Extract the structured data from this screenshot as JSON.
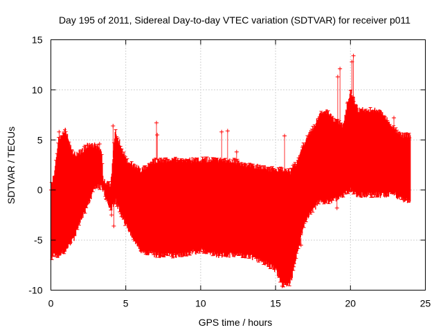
{
  "chart_data": {
    "type": "scatter",
    "title": "Day 195 of 2011, Sidereal Day-to-day VTEC variation (SDTVAR) for receiver p011",
    "xlabel": "GPS time / hours",
    "ylabel": "SDTVAR / TECUs",
    "xlim": [
      0,
      25
    ],
    "ylim": [
      -10,
      15
    ],
    "xticks": [
      0,
      5,
      10,
      15,
      20,
      25
    ],
    "yticks": [
      -10,
      -5,
      0,
      5,
      10,
      15
    ],
    "xtick_labels": [
      "0",
      "5",
      "10",
      "15",
      "20",
      "25"
    ],
    "ytick_labels": [
      "-10",
      "-5",
      "0",
      "5",
      "10",
      "15"
    ],
    "grid": true,
    "legend": "none",
    "marker": "+",
    "colors": {
      "series": "#ff0000",
      "grid": "#a0a0a0",
      "axis": "#000000"
    },
    "series": [
      {
        "name": "SDTVAR",
        "envelope": {
          "x": [
            0.0,
            0.2,
            0.5,
            1.0,
            1.5,
            2.0,
            2.5,
            3.0,
            3.4,
            3.5,
            4.0,
            4.3,
            5.0,
            6.0,
            7.0,
            8.0,
            9.0,
            10.0,
            11.0,
            12.0,
            13.0,
            14.0,
            15.0,
            15.5,
            16.0,
            16.5,
            17.0,
            18.0,
            18.3,
            18.9,
            19.5,
            20.0,
            20.5,
            21.0,
            22.0,
            23.0,
            23.5,
            24.0
          ],
          "upper": [
            0.3,
            1.5,
            5.0,
            6.0,
            3.5,
            3.8,
            4.5,
            4.5,
            3.8,
            1.0,
            0.5,
            6.0,
            3.0,
            2.0,
            3.0,
            3.0,
            3.0,
            3.0,
            3.0,
            3.0,
            2.5,
            2.3,
            2.0,
            2.0,
            1.8,
            3.0,
            5.0,
            7.5,
            8.0,
            7.0,
            6.5,
            10.0,
            8.0,
            8.0,
            8.0,
            6.0,
            5.5,
            5.5
          ],
          "lower": [
            -7.0,
            -6.5,
            -6.5,
            -6.0,
            -5.0,
            -3.0,
            -1.5,
            0.5,
            0.2,
            0.0,
            -2.0,
            -1.0,
            -3.5,
            -6.0,
            -6.5,
            -6.5,
            -6.5,
            -6.0,
            -6.5,
            -6.5,
            -6.5,
            -7.0,
            -8.0,
            -9.5,
            -9.3,
            -6.0,
            -3.0,
            -1.0,
            -1.2,
            -1.0,
            -0.5,
            0.0,
            -0.5,
            -0.5,
            -0.5,
            -0.5,
            -1.0,
            -1.0
          ]
        },
        "outliers": [
          {
            "x": 0.55,
            "y": 5.8
          },
          {
            "x": 3.25,
            "y": 4.6
          },
          {
            "x": 4.05,
            "y": -2.5
          },
          {
            "x": 4.15,
            "y": 6.4
          },
          {
            "x": 4.2,
            "y": -3.6
          },
          {
            "x": 7.05,
            "y": 6.7
          },
          {
            "x": 7.1,
            "y": 5.5
          },
          {
            "x": 11.4,
            "y": 5.8
          },
          {
            "x": 11.8,
            "y": 5.9
          },
          {
            "x": 12.4,
            "y": 3.8
          },
          {
            "x": 15.2,
            "y": -7.5
          },
          {
            "x": 15.45,
            "y": -9.6
          },
          {
            "x": 15.6,
            "y": 5.4
          },
          {
            "x": 16.7,
            "y": -5.5
          },
          {
            "x": 19.1,
            "y": -1.8
          },
          {
            "x": 19.15,
            "y": 11.3
          },
          {
            "x": 19.3,
            "y": 12.1
          },
          {
            "x": 20.1,
            "y": 12.8
          },
          {
            "x": 20.2,
            "y": 13.4
          },
          {
            "x": 22.9,
            "y": 7.2
          }
        ]
      }
    ]
  }
}
